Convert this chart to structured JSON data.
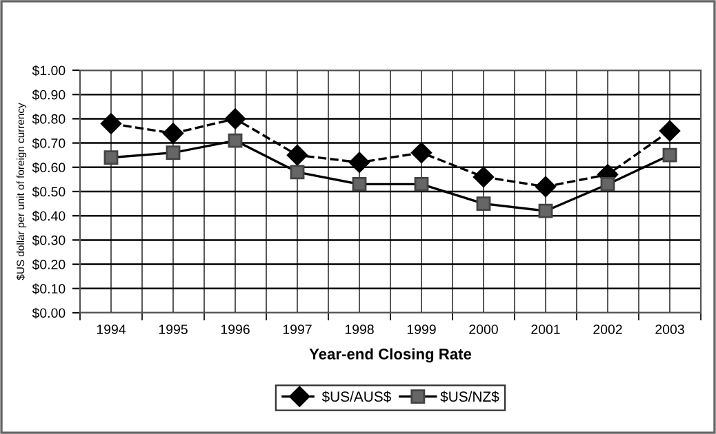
{
  "chart_data": {
    "type": "line",
    "xlabel": "Year-end Closing Rate",
    "ylabel": "$US dollar per unit of foreign currency",
    "categories": [
      "1994",
      "1995",
      "1996",
      "1997",
      "1998",
      "1999",
      "2000",
      "2001",
      "2002",
      "2003"
    ],
    "series": [
      {
        "name": "$US/AUS$",
        "color": "#000000",
        "marker": "diamond",
        "line_style": "dashed",
        "values": [
          0.78,
          0.74,
          0.8,
          0.65,
          0.62,
          0.66,
          0.56,
          0.52,
          0.57,
          0.75
        ]
      },
      {
        "name": "$US/NZ$",
        "color": "#666666",
        "marker": "square",
        "line_style": "solid",
        "values": [
          0.64,
          0.66,
          0.71,
          0.58,
          0.53,
          0.53,
          0.45,
          0.42,
          0.53,
          0.65
        ]
      }
    ],
    "ylim": [
      0,
      1
    ],
    "yticks": [
      {
        "value": 0,
        "label": "$0.00"
      },
      {
        "value": 0.1,
        "label": "$0.10"
      },
      {
        "value": 0.2,
        "label": "$0.20"
      },
      {
        "value": 0.3,
        "label": "$0.30"
      },
      {
        "value": 0.4,
        "label": "$0.40"
      },
      {
        "value": 0.5,
        "label": "$0.50"
      },
      {
        "value": 0.6,
        "label": "$0.60"
      },
      {
        "value": 0.7,
        "label": "$0.70"
      },
      {
        "value": 0.8,
        "label": "$0.80"
      },
      {
        "value": 0.9,
        "label": "$0.90"
      },
      {
        "value": 1,
        "label": "$1.00"
      }
    ],
    "grid": true,
    "legend": "bottom"
  }
}
